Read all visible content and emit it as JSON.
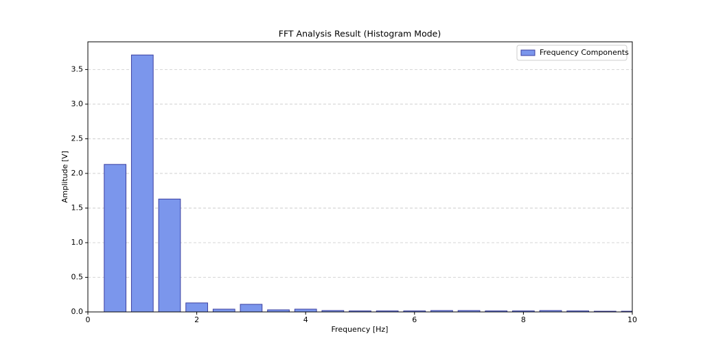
{
  "chart_data": {
    "type": "bar",
    "title": "FFT Analysis Result (Histogram Mode)",
    "x_label": "Frequency [Hz]",
    "y_label": "Amplitude [V]",
    "x": [
      0.5,
      1.0,
      1.5,
      2.0,
      2.5,
      3.0,
      3.5,
      4.0,
      4.5,
      5.0,
      5.5,
      6.0,
      6.5,
      7.0,
      7.5,
      8.0,
      8.5,
      9.0,
      9.5,
      10.0
    ],
    "series": [
      {
        "name": "Frequency Components",
        "color": "#7b96ec",
        "edge_color": "#3b3fa0",
        "values": [
          2.13,
          3.71,
          1.63,
          0.13,
          0.04,
          0.11,
          0.03,
          0.04,
          0.02,
          0.015,
          0.015,
          0.015,
          0.02,
          0.02,
          0.015,
          0.015,
          0.02,
          0.015,
          0.01,
          0.01
        ]
      }
    ],
    "xlim": [
      0,
      10
    ],
    "xticks": [
      0,
      2,
      4,
      6,
      8,
      10
    ],
    "ylim": [
      0,
      3.9
    ],
    "yticks": [
      {
        "value": 0,
        "label": "0.0"
      },
      {
        "value": 0.5,
        "label": "0.5"
      },
      {
        "value": 1,
        "label": "1.0"
      },
      {
        "value": 1.5,
        "label": "1.5"
      },
      {
        "value": 2,
        "label": "2.0"
      },
      {
        "value": 2.5,
        "label": "2.5"
      },
      {
        "value": 3,
        "label": "3.0"
      },
      {
        "value": 3.5,
        "label": "3.5"
      }
    ],
    "grid": "y",
    "legend": "upper right"
  }
}
